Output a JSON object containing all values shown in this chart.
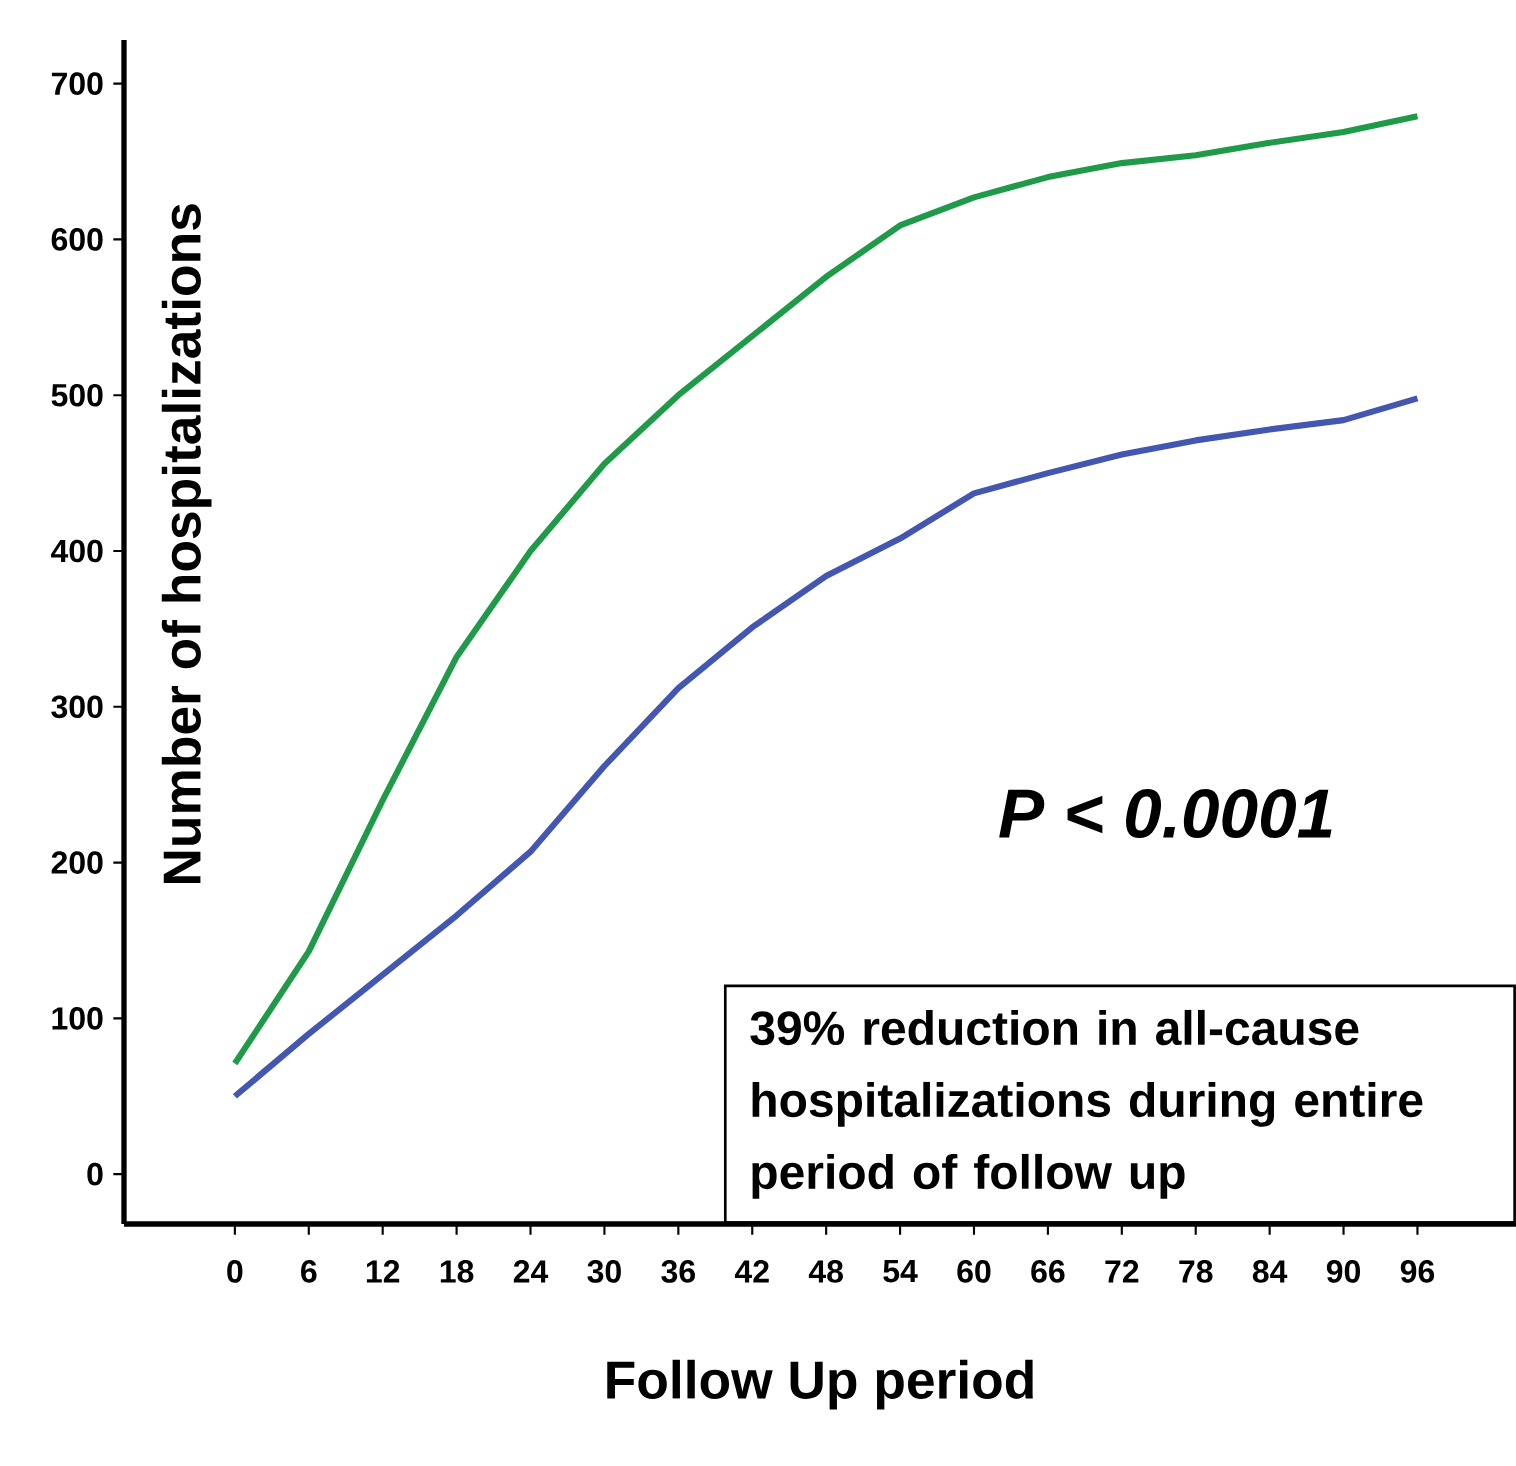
{
  "chart_data": {
    "type": "line",
    "xlabel": "Follow Up period",
    "ylabel": "Number of hospitalizations",
    "x": [
      0,
      6,
      12,
      18,
      24,
      30,
      36,
      42,
      48,
      54,
      60,
      66,
      72,
      78,
      84,
      90,
      96
    ],
    "series": [
      {
        "color": "#1f9a48",
        "values": [
          71,
          143,
          240,
          332,
          400,
          456,
          500,
          538,
          576,
          609,
          627,
          640,
          649,
          654,
          662,
          669,
          679
        ]
      },
      {
        "color": "#4357b0",
        "values": [
          50,
          90,
          128,
          166,
          207,
          262,
          312,
          351,
          384,
          408,
          437,
          450,
          462,
          471,
          478,
          484,
          498
        ]
      }
    ],
    "xlim": [
      -9,
      104
    ],
    "ylim": [
      -32,
      728
    ],
    "xticks": [
      0,
      6,
      12,
      18,
      24,
      30,
      36,
      42,
      48,
      54,
      60,
      66,
      72,
      78,
      84,
      90,
      96
    ],
    "yticks": [
      0,
      100,
      200,
      300,
      400,
      500,
      600,
      700
    ],
    "annotations": [
      "P < 0.0001",
      "39% reduction in all-cause hospitalizations during entire period of follow up"
    ],
    "grid": false,
    "marker": "none",
    "line_style": "solid"
  }
}
